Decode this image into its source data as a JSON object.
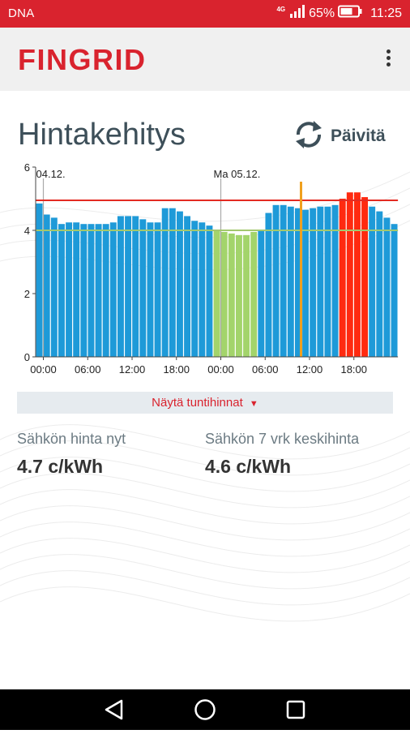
{
  "status_bar": {
    "carrier": "DNA",
    "network": "4G",
    "battery": "65%",
    "time": "11:25"
  },
  "app_bar": {
    "logo": "FINGRID",
    "menu_icon": "more-vert-icon"
  },
  "page": {
    "title": "Hintakehitys",
    "refresh_label": "Päivitä",
    "refresh_icon": "refresh-icon",
    "hourly_prices_label": "Näytä tuntihinnat",
    "hourly_prices_arrow": "▼"
  },
  "stats": {
    "current_label": "Sähkön hinta nyt",
    "current_value": "4.7 c/kWh",
    "avg_label": "Sähkön 7 vrk keskihinta",
    "avg_value": "4.6 c/kWh"
  },
  "chart_data": {
    "type": "bar",
    "title": "",
    "xlabel": "",
    "ylabel": "",
    "ylim": [
      0,
      6
    ],
    "y_ticks": [
      "0",
      "2",
      "4",
      "6"
    ],
    "x_tick_labels": [
      "00:00",
      "06:00",
      "12:00",
      "18:00",
      "00:00",
      "06:00",
      "12:00",
      "18:00"
    ],
    "day_labels": [
      {
        "label": "04.12.",
        "hour_index": 0
      },
      {
        "label": "Ma 05.12.",
        "hour_index": 24
      }
    ],
    "reference_lines": [
      {
        "value": 4.95,
        "color": "#e32b22"
      },
      {
        "value": 4.0,
        "color": "#a3c86e"
      }
    ],
    "current_hour_index": 36,
    "current_marker_color": "#f0a01e",
    "grid": false,
    "colors": {
      "blue": "#1e9ad8",
      "green": "#a3d46b",
      "red": "#ff2a10"
    },
    "values": [
      4.85,
      4.5,
      4.4,
      4.2,
      4.25,
      4.25,
      4.2,
      4.2,
      4.2,
      4.2,
      4.25,
      4.45,
      4.45,
      4.45,
      4.35,
      4.25,
      4.25,
      4.7,
      4.7,
      4.6,
      4.45,
      4.3,
      4.25,
      4.15,
      4.0,
      3.95,
      3.9,
      3.85,
      3.85,
      3.95,
      4.0,
      4.55,
      4.8,
      4.8,
      4.75,
      4.7,
      4.65,
      4.7,
      4.75,
      4.75,
      4.8,
      5.0,
      5.2,
      5.2,
      5.05,
      4.75,
      4.6,
      4.4,
      4.2
    ],
    "bar_colors": [
      "blue",
      "blue",
      "blue",
      "blue",
      "blue",
      "blue",
      "blue",
      "blue",
      "blue",
      "blue",
      "blue",
      "blue",
      "blue",
      "blue",
      "blue",
      "blue",
      "blue",
      "blue",
      "blue",
      "blue",
      "blue",
      "blue",
      "blue",
      "blue",
      "green",
      "green",
      "green",
      "green",
      "green",
      "green",
      "blue",
      "blue",
      "blue",
      "blue",
      "blue",
      "blue",
      "blue",
      "blue",
      "blue",
      "blue",
      "blue",
      "red",
      "red",
      "red",
      "red",
      "blue",
      "blue",
      "blue",
      "blue"
    ]
  }
}
